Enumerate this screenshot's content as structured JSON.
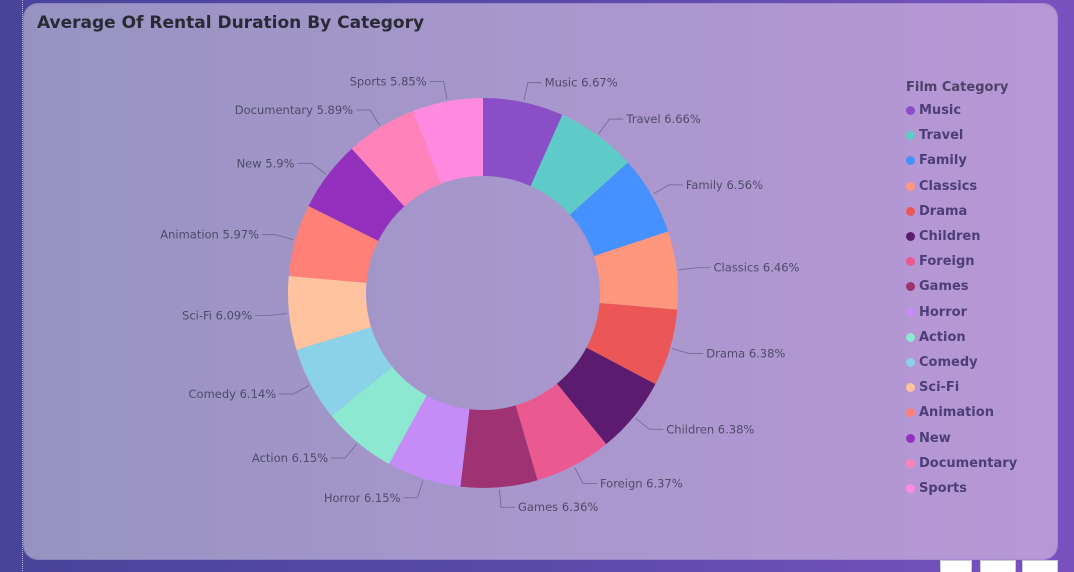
{
  "chart_data": {
    "type": "pie",
    "variant": "donut",
    "title": "Average Of Rental Duration By Category",
    "legend_title": "Film Category",
    "legend_position": "right",
    "slices": [
      {
        "label": "Music",
        "value": 6.67,
        "value_text": "6.67%",
        "color": "#8a4ec7"
      },
      {
        "label": "Travel",
        "value": 6.66,
        "value_text": "6.66%",
        "color": "#5ecbc8"
      },
      {
        "label": "Family",
        "value": 6.56,
        "value_text": "6.56%",
        "color": "#4591ff"
      },
      {
        "label": "Classics",
        "value": 6.46,
        "value_text": "6.46%",
        "color": "#ff977e"
      },
      {
        "label": "Drama",
        "value": 6.38,
        "value_text": "6.38%",
        "color": "#eb5757"
      },
      {
        "label": "Children",
        "value": 6.38,
        "value_text": "6.38%",
        "color": "#5b1c6f"
      },
      {
        "label": "Foreign",
        "value": 6.37,
        "value_text": "6.37%",
        "color": "#ea5a90"
      },
      {
        "label": "Games",
        "value": 6.36,
        "value_text": "6.36%",
        "color": "#9f3273"
      },
      {
        "label": "Horror",
        "value": 6.15,
        "value_text": "6.15%",
        "color": "#c58bf7"
      },
      {
        "label": "Action",
        "value": 6.15,
        "value_text": "6.15%",
        "color": "#8de8d2"
      },
      {
        "label": "Comedy",
        "value": 6.14,
        "value_text": "6.14%",
        "color": "#8bd2e8"
      },
      {
        "label": "Sci-Fi",
        "value": 6.09,
        "value_text": "6.09%",
        "color": "#ffc3a0"
      },
      {
        "label": "Animation",
        "value": 5.97,
        "value_text": "5.97%",
        "color": "#ff8077"
      },
      {
        "label": "New",
        "value": 5.9,
        "value_text": "5.9%",
        "color": "#9331be"
      },
      {
        "label": "Documentary",
        "value": 5.89,
        "value_text": "5.89%",
        "color": "#ff82bb"
      },
      {
        "label": "Sports",
        "value": 5.85,
        "value_text": "5.85%",
        "color": "#ff8ae0"
      }
    ]
  }
}
